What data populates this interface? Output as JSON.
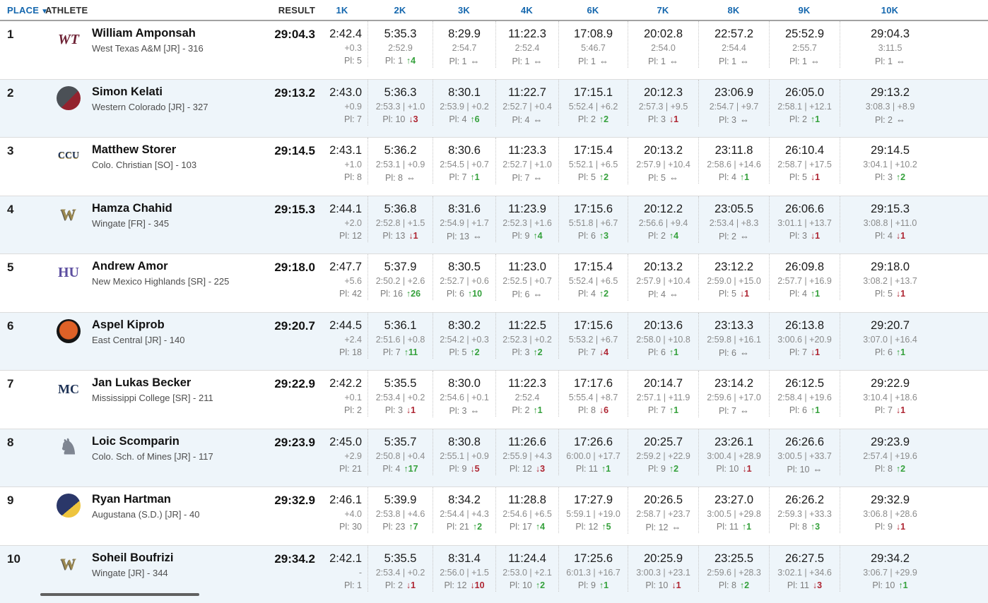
{
  "header": {
    "place": "PLACE",
    "sort_icon": "▼",
    "athlete": "ATHLETE",
    "result": "RESULT",
    "splits": [
      "1K",
      "2K",
      "3K",
      "4K",
      "6K",
      "7K",
      "8K",
      "9K",
      "10K"
    ],
    "pl_prefix": "Pl:"
  },
  "colors": {
    "header_accent": "#1467ae",
    "up_green": "#35a13c",
    "down_red": "#ae2532",
    "stripe": "#eef5fa"
  },
  "rows": [
    {
      "place": "1",
      "name": "William Amponsah",
      "team": "West Texas A&M [JR] - 316",
      "result": "29:04.3",
      "logo": {
        "name": "west-texas-am-logo",
        "kind": "text",
        "text": "WT",
        "fg": "#6d2134",
        "size": 20,
        "italic": true,
        "serif": true
      },
      "splits": [
        [
          "2:42.4",
          "+0.3",
          "5",
          ""
        ],
        [
          "5:35.3",
          "2:52.9",
          "1",
          "u4"
        ],
        [
          "8:29.9",
          "2:54.7",
          "1",
          "="
        ],
        [
          "11:22.3",
          "2:52.4",
          "1",
          "="
        ],
        [
          "17:08.9",
          "5:46.7",
          "1",
          "="
        ],
        [
          "20:02.8",
          "2:54.0",
          "1",
          "="
        ],
        [
          "22:57.2",
          "2:54.4",
          "1",
          "="
        ],
        [
          "25:52.9",
          "2:55.7",
          "1",
          "="
        ],
        [
          "29:04.3",
          "3:11.5",
          "1",
          "="
        ]
      ]
    },
    {
      "place": "2",
      "name": "Simon Kelati",
      "team": "Western Colorado [JR] - 327",
      "result": "29:13.2",
      "logo": {
        "name": "western-colorado-logo",
        "kind": "circle",
        "bg": "linear-gradient(135deg,#4b5056 55%,#93232e 55%)"
      },
      "splits": [
        [
          "2:43.0",
          "+0.9",
          "7",
          ""
        ],
        [
          "5:36.3",
          "2:53.3 | +1.0",
          "10",
          "d3"
        ],
        [
          "8:30.1",
          "2:53.9 | +0.2",
          "4",
          "u6"
        ],
        [
          "11:22.7",
          "2:52.7 | +0.4",
          "4",
          "="
        ],
        [
          "17:15.1",
          "5:52.4 | +6.2",
          "2",
          "u2"
        ],
        [
          "20:12.3",
          "2:57.3 | +9.5",
          "3",
          "d1"
        ],
        [
          "23:06.9",
          "2:54.7 | +9.7",
          "3",
          "="
        ],
        [
          "26:05.0",
          "2:58.1 | +12.1",
          "2",
          "u1"
        ],
        [
          "29:13.2",
          "3:08.3 | +8.9",
          "2",
          "="
        ]
      ]
    },
    {
      "place": "3",
      "name": "Matthew Storer",
      "team": "Colo. Christian [SO] - 103",
      "result": "29:14.5",
      "logo": {
        "name": "colorado-christian-logo",
        "kind": "text",
        "text": "CCU",
        "fg": "#22365b",
        "size": 14,
        "serif": true,
        "shadow": "0 1px 0 #bda04a"
      },
      "splits": [
        [
          "2:43.1",
          "+1.0",
          "8",
          ""
        ],
        [
          "5:36.2",
          "2:53.1 | +0.9",
          "8",
          "="
        ],
        [
          "8:30.6",
          "2:54.5 | +0.7",
          "7",
          "u1"
        ],
        [
          "11:23.3",
          "2:52.7 | +1.0",
          "7",
          "="
        ],
        [
          "17:15.4",
          "5:52.1 | +6.5",
          "5",
          "u2"
        ],
        [
          "20:13.2",
          "2:57.9 | +10.4",
          "5",
          "="
        ],
        [
          "23:11.8",
          "2:58.6 | +14.6",
          "4",
          "u1"
        ],
        [
          "26:10.4",
          "2:58.7 | +17.5",
          "5",
          "d1"
        ],
        [
          "29:14.5",
          "3:04.1 | +10.2",
          "3",
          "u2"
        ]
      ]
    },
    {
      "place": "4",
      "name": "Hamza Chahid",
      "team": "Wingate [FR] - 345",
      "result": "29:15.3",
      "logo": {
        "name": "wingate-logo",
        "kind": "text",
        "text": "W",
        "fg": "#9c8950",
        "size": 22,
        "serif": true,
        "shadow": "-1px 1px 0 #5a564d"
      },
      "splits": [
        [
          "2:44.1",
          "+2.0",
          "12",
          ""
        ],
        [
          "5:36.8",
          "2:52.8 | +1.5",
          "13",
          "d1"
        ],
        [
          "8:31.6",
          "2:54.9 | +1.7",
          "13",
          "="
        ],
        [
          "11:23.9",
          "2:52.3 | +1.6",
          "9",
          "u4"
        ],
        [
          "17:15.6",
          "5:51.8 | +6.7",
          "6",
          "u3"
        ],
        [
          "20:12.2",
          "2:56.6 | +9.4",
          "2",
          "u4"
        ],
        [
          "23:05.5",
          "2:53.4 | +8.3",
          "2",
          "="
        ],
        [
          "26:06.6",
          "3:01.1 | +13.7",
          "3",
          "d1"
        ],
        [
          "29:15.3",
          "3:08.8 | +11.0",
          "4",
          "d1"
        ]
      ]
    },
    {
      "place": "5",
      "name": "Andrew Amor",
      "team": "New Mexico Highlands [SR] - 225",
      "result": "29:18.0",
      "logo": {
        "name": "new-mexico-highlands-logo",
        "kind": "text",
        "text": "HU",
        "fg": "#5d4fa0",
        "size": 20,
        "serif": true
      },
      "splits": [
        [
          "2:47.7",
          "+5.6",
          "42",
          ""
        ],
        [
          "5:37.9",
          "2:50.2 | +2.6",
          "16",
          "u26"
        ],
        [
          "8:30.5",
          "2:52.7 | +0.6",
          "6",
          "u10"
        ],
        [
          "11:23.0",
          "2:52.5 | +0.7",
          "6",
          "="
        ],
        [
          "17:15.4",
          "5:52.4 | +6.5",
          "4",
          "u2"
        ],
        [
          "20:13.2",
          "2:57.9 | +10.4",
          "4",
          "="
        ],
        [
          "23:12.2",
          "2:59.0 | +15.0",
          "5",
          "d1"
        ],
        [
          "26:09.8",
          "2:57.7 | +16.9",
          "4",
          "u1"
        ],
        [
          "29:18.0",
          "3:08.2 | +13.7",
          "5",
          "d1"
        ]
      ]
    },
    {
      "place": "6",
      "name": "Aspel Kiprob",
      "team": "East Central [JR] - 140",
      "result": "29:20.7",
      "logo": {
        "name": "east-central-logo",
        "kind": "circle",
        "bg": "radial-gradient(circle at 50% 46%,#df6127 50%,#141414 54%)"
      },
      "splits": [
        [
          "2:44.5",
          "+2.4",
          "18",
          ""
        ],
        [
          "5:36.1",
          "2:51.6 | +0.8",
          "7",
          "u11"
        ],
        [
          "8:30.2",
          "2:54.2 | +0.3",
          "5",
          "u2"
        ],
        [
          "11:22.5",
          "2:52.3 | +0.2",
          "3",
          "u2"
        ],
        [
          "17:15.6",
          "5:53.2 | +6.7",
          "7",
          "d4"
        ],
        [
          "20:13.6",
          "2:58.0 | +10.8",
          "6",
          "u1"
        ],
        [
          "23:13.3",
          "2:59.8 | +16.1",
          "6",
          "="
        ],
        [
          "26:13.8",
          "3:00.6 | +20.9",
          "7",
          "d1"
        ],
        [
          "29:20.7",
          "3:07.0 | +16.4",
          "6",
          "u1"
        ]
      ]
    },
    {
      "place": "7",
      "name": "Jan Lukas Becker",
      "team": "Mississippi College [SR] - 211",
      "result": "29:22.9",
      "logo": {
        "name": "mississippi-college-logo",
        "kind": "text",
        "text": "MC",
        "fg": "#1e3256",
        "size": 18,
        "serif": true
      },
      "splits": [
        [
          "2:42.2",
          "+0.1",
          "2",
          ""
        ],
        [
          "5:35.5",
          "2:53.4 | +0.2",
          "3",
          "d1"
        ],
        [
          "8:30.0",
          "2:54.6 | +0.1",
          "3",
          "="
        ],
        [
          "11:22.3",
          "2:52.4",
          "2",
          "u1"
        ],
        [
          "17:17.6",
          "5:55.4 | +8.7",
          "8",
          "d6"
        ],
        [
          "20:14.7",
          "2:57.1 | +11.9",
          "7",
          "u1"
        ],
        [
          "23:14.2",
          "2:59.6 | +17.0",
          "7",
          "="
        ],
        [
          "26:12.5",
          "2:58.4 | +19.6",
          "6",
          "u1"
        ],
        [
          "29:22.9",
          "3:10.4 | +18.6",
          "7",
          "d1"
        ]
      ]
    },
    {
      "place": "8",
      "name": "Loic Scomparin",
      "team": "Colo. Sch. of Mines [JR] - 117",
      "result": "29:23.9",
      "logo": {
        "name": "colorado-school-of-mines-logo",
        "kind": "text",
        "text": "♞",
        "fg": "#7e8591",
        "size": 30
      },
      "splits": [
        [
          "2:45.0",
          "+2.9",
          "21",
          ""
        ],
        [
          "5:35.7",
          "2:50.8 | +0.4",
          "4",
          "u17"
        ],
        [
          "8:30.8",
          "2:55.1 | +0.9",
          "9",
          "d5"
        ],
        [
          "11:26.6",
          "2:55.9 | +4.3",
          "12",
          "d3"
        ],
        [
          "17:26.6",
          "6:00.0 | +17.7",
          "11",
          "u1"
        ],
        [
          "20:25.7",
          "2:59.2 | +22.9",
          "9",
          "u2"
        ],
        [
          "23:26.1",
          "3:00.4 | +28.9",
          "10",
          "d1"
        ],
        [
          "26:26.6",
          "3:00.5 | +33.7",
          "10",
          "="
        ],
        [
          "29:23.9",
          "2:57.4 | +19.6",
          "8",
          "u2"
        ]
      ]
    },
    {
      "place": "9",
      "name": "Ryan Hartman",
      "team": "Augustana (S.D.) [JR] - 40",
      "result": "29:32.9",
      "logo": {
        "name": "augustana-sd-logo",
        "kind": "circle",
        "bg": "linear-gradient(140deg,#2a3769 60%,#eec43e 60%)"
      },
      "splits": [
        [
          "2:46.1",
          "+4.0",
          "30",
          ""
        ],
        [
          "5:39.9",
          "2:53.8 | +4.6",
          "23",
          "u7"
        ],
        [
          "8:34.2",
          "2:54.4 | +4.3",
          "21",
          "u2"
        ],
        [
          "11:28.8",
          "2:54.6 | +6.5",
          "17",
          "u4"
        ],
        [
          "17:27.9",
          "5:59.1 | +19.0",
          "12",
          "u5"
        ],
        [
          "20:26.5",
          "2:58.7 | +23.7",
          "12",
          "="
        ],
        [
          "23:27.0",
          "3:00.5 | +29.8",
          "11",
          "u1"
        ],
        [
          "26:26.2",
          "2:59.3 | +33.3",
          "8",
          "u3"
        ],
        [
          "29:32.9",
          "3:06.8 | +28.6",
          "9",
          "d1"
        ]
      ]
    },
    {
      "place": "10",
      "name": "Soheil Boufrizi",
      "team": "Wingate [JR] - 344",
      "result": "29:34.2",
      "logo": {
        "name": "wingate-logo",
        "kind": "text",
        "text": "W",
        "fg": "#9c8950",
        "size": 22,
        "serif": true,
        "shadow": "-1px 1px 0 #5a564d"
      },
      "splits": [
        [
          "2:42.1",
          "-",
          "1",
          ""
        ],
        [
          "5:35.5",
          "2:53.4 | +0.2",
          "2",
          "d1"
        ],
        [
          "8:31.4",
          "2:56.0 | +1.5",
          "12",
          "d10"
        ],
        [
          "11:24.4",
          "2:53.0 | +2.1",
          "10",
          "u2"
        ],
        [
          "17:25.6",
          "6:01.3 | +16.7",
          "9",
          "u1"
        ],
        [
          "20:25.9",
          "3:00.3 | +23.1",
          "10",
          "d1"
        ],
        [
          "23:25.5",
          "2:59.6 | +28.3",
          "8",
          "u2"
        ],
        [
          "26:27.5",
          "3:02.1 | +34.6",
          "11",
          "d3"
        ],
        [
          "29:34.2",
          "3:06.7 | +29.9",
          "10",
          "u1"
        ]
      ]
    }
  ]
}
